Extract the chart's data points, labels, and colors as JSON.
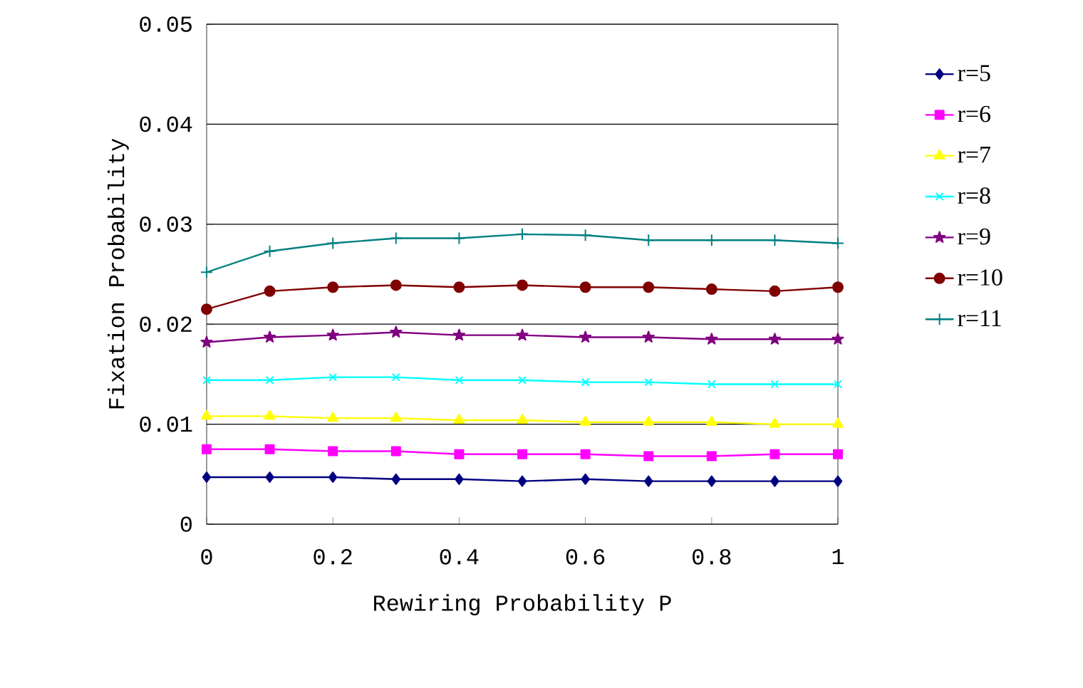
{
  "chart_data": {
    "type": "line",
    "xlabel": "Rewiring Probability P",
    "ylabel": "Fixation Probability",
    "x": [
      0,
      0.1,
      0.2,
      0.3,
      0.4,
      0.5,
      0.6,
      0.7,
      0.8,
      0.9,
      1
    ],
    "series": [
      {
        "name": "r=5",
        "color": "#000080",
        "marker": "diamond",
        "values": [
          0.0047,
          0.0047,
          0.0047,
          0.0045,
          0.0045,
          0.0043,
          0.0045,
          0.0043,
          0.0043,
          0.0043,
          0.0043
        ]
      },
      {
        "name": "r=6",
        "color": "#ff00ff",
        "marker": "square",
        "values": [
          0.0075,
          0.0075,
          0.0073,
          0.0073,
          0.007,
          0.007,
          0.007,
          0.0068,
          0.0068,
          0.007,
          0.007
        ]
      },
      {
        "name": "r=7",
        "color": "#ffff00",
        "marker": "triangle",
        "values": [
          0.0108,
          0.0108,
          0.0106,
          0.0106,
          0.0104,
          0.0104,
          0.0102,
          0.0102,
          0.0102,
          0.01,
          0.01
        ]
      },
      {
        "name": "r=8",
        "color": "#00ffff",
        "marker": "cross",
        "values": [
          0.0144,
          0.0144,
          0.0147,
          0.0147,
          0.0144,
          0.0144,
          0.0142,
          0.0142,
          0.014,
          0.014,
          0.014
        ]
      },
      {
        "name": "r=9",
        "color": "#800080",
        "marker": "star",
        "values": [
          0.0182,
          0.0187,
          0.0189,
          0.0192,
          0.0189,
          0.0189,
          0.0187,
          0.0187,
          0.0185,
          0.0185,
          0.0185
        ]
      },
      {
        "name": "r=10",
        "color": "#800000",
        "marker": "circle",
        "values": [
          0.0215,
          0.0233,
          0.0237,
          0.0239,
          0.0237,
          0.0239,
          0.0237,
          0.0237,
          0.0235,
          0.0233,
          0.0237
        ]
      },
      {
        "name": "r=11",
        "color": "#008080",
        "marker": "plus",
        "values": [
          0.0252,
          0.0273,
          0.0281,
          0.0286,
          0.0286,
          0.029,
          0.0289,
          0.0284,
          0.0284,
          0.0284,
          0.0281
        ]
      }
    ],
    "xlim": [
      0,
      1
    ],
    "xticks": [
      0,
      0.2,
      0.4,
      0.6,
      0.8,
      1
    ],
    "ylim": [
      0,
      0.05
    ],
    "yticks": [
      0,
      0.01,
      0.02,
      0.03,
      0.04,
      0.05
    ],
    "grid": "y",
    "legend": "right",
    "line_style": "solid"
  }
}
